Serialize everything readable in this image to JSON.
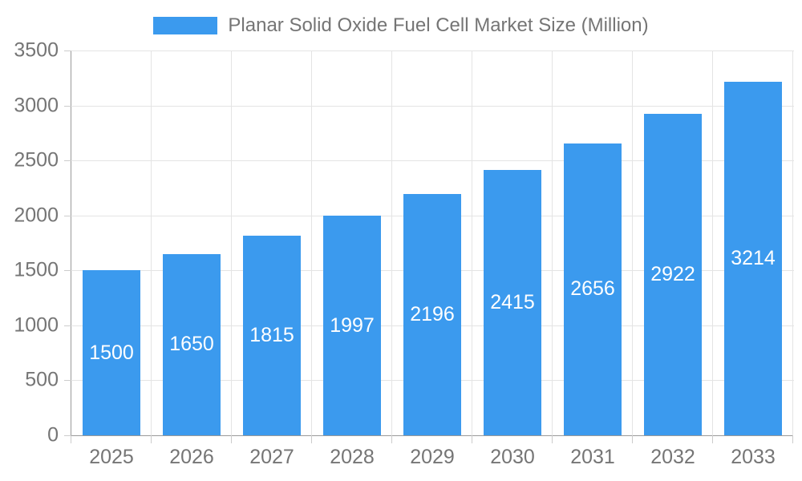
{
  "legend": {
    "label": "Planar Solid Oxide Fuel Cell Market Size (Million)",
    "swatch_color": "#3B9AEE"
  },
  "chart_data": {
    "type": "bar",
    "title": "Planar Solid Oxide Fuel Cell Market Size (Million)",
    "categories": [
      "2025",
      "2026",
      "2027",
      "2028",
      "2029",
      "2030",
      "2031",
      "2032",
      "2033"
    ],
    "series": [
      {
        "name": "Planar Solid Oxide Fuel Cell Market Size (Million)",
        "values": [
          1500,
          1650,
          1815,
          1997,
          2196,
          2415,
          2656,
          2922,
          3214
        ]
      }
    ],
    "xlabel": "",
    "ylabel": "",
    "ylim": [
      0,
      3500
    ],
    "yticks": [
      0,
      500,
      1000,
      1500,
      2000,
      2500,
      3000,
      3500
    ],
    "grid": true,
    "legend_position": "top",
    "bar_color": "#3B9AEE",
    "value_label_color": "#ffffff",
    "axis_text_color": "#757575",
    "axis_line_color": "#999999",
    "gridline_color": "#e4e4e4",
    "tick_color": "#cccccc"
  }
}
